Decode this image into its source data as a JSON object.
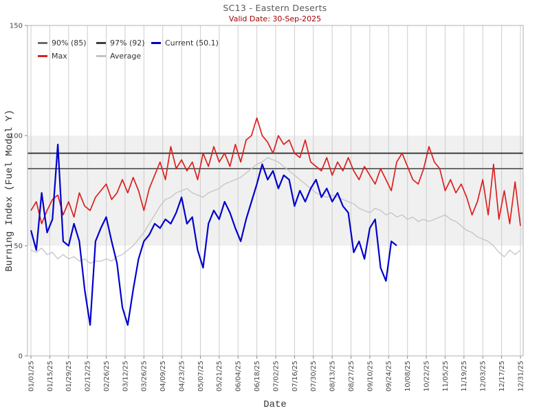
{
  "chart_data": {
    "type": "line",
    "title": "SC13 - Eastern Deserts",
    "subtitle": "Valid Date: 30-Sep-2025",
    "xlabel": "Date",
    "ylabel": "Burning Index (Fuel Model Y)",
    "ylim": [
      0,
      150
    ],
    "y_ticks": [
      0,
      50,
      100,
      150
    ],
    "x_tick_labels": [
      "01/01/25",
      "01/15/25",
      "01/29/25",
      "02/12/25",
      "02/26/25",
      "03/12/25",
      "03/26/25",
      "04/09/25",
      "04/23/25",
      "05/07/25",
      "05/21/25",
      "06/04/25",
      "06/18/25",
      "07/02/25",
      "07/16/25",
      "07/30/25",
      "08/13/25",
      "08/27/25",
      "09/10/25",
      "09/24/25",
      "10/08/25",
      "10/22/25",
      "11/05/25",
      "11/19/25",
      "12/03/25",
      "12/17/25",
      "12/31/25"
    ],
    "x_tick_interval_days": 14,
    "grid": "vertical-only",
    "shaded_band": {
      "from": 50,
      "to": 100
    },
    "reference_lines": [
      {
        "name": "90% (85)",
        "value": 85,
        "color": "#6a6a6a"
      },
      {
        "name": "97% (92)",
        "value": 92,
        "color": "#3d3d3d"
      }
    ],
    "legend": [
      {
        "label": "90% (85)",
        "color": "#6a6a6a",
        "col": 0,
        "row": 0
      },
      {
        "label": "97% (92)",
        "color": "#3d3d3d",
        "col": 1,
        "row": 0
      },
      {
        "label": "Current (50.1)",
        "color": "#0000cc",
        "col": 2,
        "row": 0
      },
      {
        "label": "Max",
        "color": "#dc1e1e",
        "col": 0,
        "row": 1
      },
      {
        "label": "Average",
        "color": "#c3c3c3",
        "col": 1,
        "row": 1
      }
    ],
    "series": [
      {
        "name": "Average",
        "color": "#c3c3c3",
        "width": 1.3,
        "start_day": 0,
        "sample_interval_days": 4,
        "values": [
          48,
          47,
          49,
          46,
          47,
          44,
          46,
          44,
          45,
          43,
          44,
          42,
          43,
          43,
          44,
          43,
          45,
          46,
          48,
          50,
          53,
          56,
          60,
          64,
          68,
          71,
          72,
          74,
          75,
          76,
          74,
          73,
          72,
          74,
          75,
          76,
          78,
          79,
          80,
          81,
          83,
          85,
          87,
          88,
          90,
          89,
          88,
          86,
          84,
          82,
          80,
          78,
          76,
          74,
          73,
          72,
          73,
          72,
          71,
          70,
          69,
          67,
          66,
          65,
          67,
          66,
          64,
          65,
          63,
          64,
          62,
          63,
          61,
          62,
          61,
          62,
          63,
          64,
          62,
          61,
          59,
          57,
          56,
          54,
          53,
          52,
          50,
          47,
          45,
          48,
          46,
          48
        ]
      },
      {
        "name": "Max",
        "color": "#dc1e1e",
        "width": 1.7,
        "start_day": 0,
        "sample_interval_days": 4,
        "values": [
          66,
          70,
          60,
          66,
          71,
          73,
          64,
          70,
          63,
          74,
          68,
          66,
          72,
          75,
          78,
          71,
          74,
          80,
          74,
          81,
          75,
          66,
          76,
          82,
          88,
          80,
          95,
          85,
          89,
          84,
          88,
          80,
          92,
          86,
          95,
          88,
          92,
          86,
          96,
          88,
          98,
          100,
          108,
          100,
          97,
          92,
          100,
          96,
          98,
          92,
          90,
          98,
          88,
          86,
          84,
          90,
          82,
          88,
          84,
          90,
          84,
          80,
          86,
          82,
          78,
          85,
          80,
          75,
          88,
          92,
          86,
          80,
          78,
          85,
          95,
          88,
          85,
          75,
          80,
          74,
          78,
          72,
          64,
          70,
          80,
          64,
          87,
          62,
          75,
          60,
          79,
          59
        ]
      },
      {
        "name": "Current",
        "color": "#0000cc",
        "width": 2.2,
        "start_day": 0,
        "sample_interval_days": 4,
        "current_value": 50.1,
        "values": [
          57,
          48,
          74,
          56,
          62,
          96,
          52,
          50,
          60,
          52,
          30,
          14,
          52,
          58,
          63,
          52,
          42,
          22,
          14,
          30,
          44,
          52,
          55,
          60,
          58,
          62,
          60,
          65,
          72,
          60,
          63,
          48,
          40,
          60,
          66,
          62,
          70,
          65,
          58,
          52,
          62,
          70,
          78,
          87,
          80,
          84,
          76,
          82,
          80,
          68,
          75,
          70,
          76,
          80,
          72,
          76,
          70,
          74,
          68,
          65,
          47,
          52,
          44,
          58,
          62,
          40,
          34,
          52,
          50.1
        ]
      }
    ],
    "colors": {
      "band": "#f0f0f0",
      "grid": "#cccccc",
      "spine": "#b0b0b0",
      "tick": "#808080",
      "tick_text": "#444444"
    }
  }
}
